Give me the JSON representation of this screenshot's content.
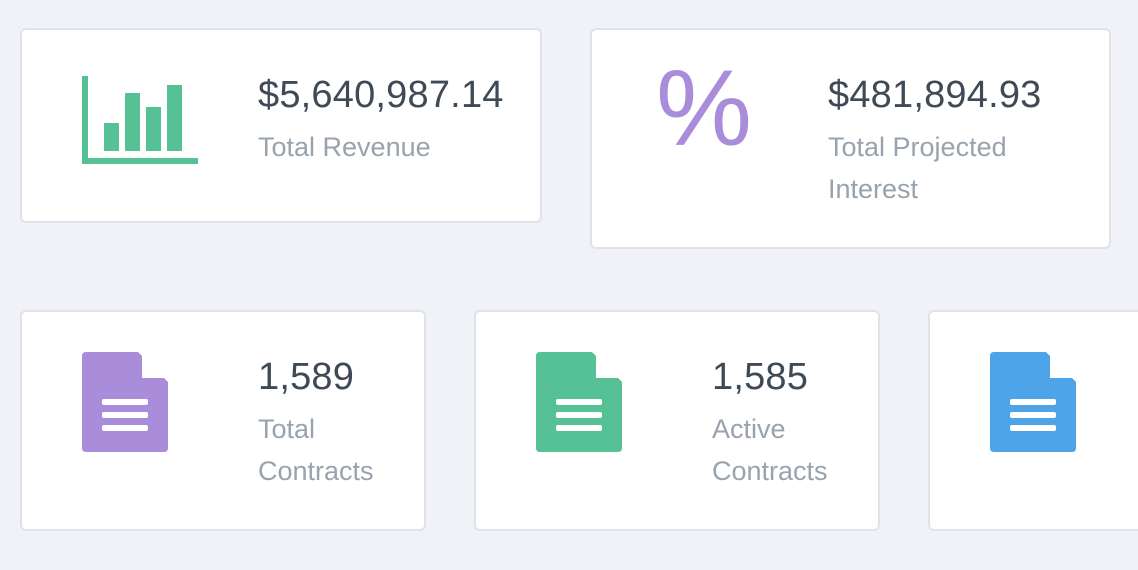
{
  "cards": [
    {
      "value": "$5,640,987.14",
      "label": "Total Revenue",
      "icon": "bar-chart-icon",
      "color": "#56c195"
    },
    {
      "value": "$481,894.93",
      "label": "Total Projected Interest",
      "icon": "percent-icon",
      "color": "#a98ddb"
    },
    {
      "value": "1,589",
      "label": "Total Contracts",
      "icon": "document-icon",
      "color": "#a98ddb"
    },
    {
      "value": "1,585",
      "label": "Active Contracts",
      "icon": "document-icon",
      "color": "#56c195"
    },
    {
      "icon": "document-icon",
      "color": "#4da4e8"
    }
  ],
  "percent_symbol": "%"
}
